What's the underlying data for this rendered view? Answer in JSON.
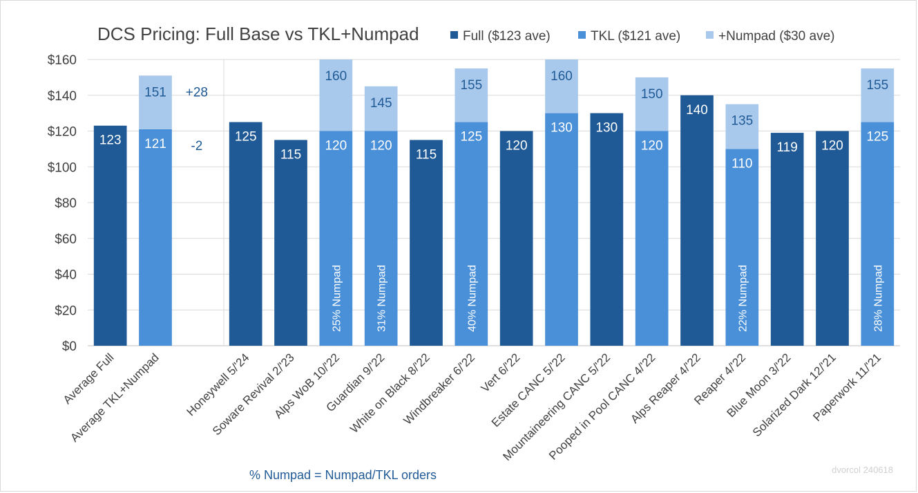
{
  "chart_data": {
    "type": "bar",
    "stacked": true,
    "title": "DCS Pricing: Full Base vs TKL+Numpad",
    "ylim": [
      0,
      160
    ],
    "yticks": [
      0,
      20,
      40,
      60,
      80,
      100,
      120,
      140,
      160
    ],
    "ytick_format": "$",
    "grid": true,
    "legend_position": "top",
    "legend": [
      {
        "key": "full",
        "label": "Full ($123 ave)",
        "color": "#1f5a96"
      },
      {
        "key": "tkl",
        "label": "TKL ($121 ave)",
        "color": "#4a90d9"
      },
      {
        "key": "numpad",
        "label": "+Numpad ($30 ave)",
        "color": "#a9c9ec"
      }
    ],
    "categories": [
      {
        "label": "Average Full",
        "type": "full",
        "base": 123,
        "total": null,
        "pct": null
      },
      {
        "label": "Average TKL+Numpad",
        "type": "tkl",
        "base": 121,
        "total": 151,
        "pct": null,
        "diff_total": "+28",
        "diff_base": "-2"
      },
      {
        "label": "",
        "type": "gap",
        "base": null,
        "total": null,
        "pct": null
      },
      {
        "label": "Honeywell 5/'24",
        "type": "full",
        "base": 125,
        "total": null,
        "pct": null
      },
      {
        "label": "Soware Revival 2/'23",
        "type": "full",
        "base": 115,
        "total": null,
        "pct": null
      },
      {
        "label": "Alps WoB 10/'22",
        "type": "tkl",
        "base": 120,
        "total": 160,
        "pct": "25% Numpad"
      },
      {
        "label": "Guardian 9/'22",
        "type": "tkl",
        "base": 120,
        "total": 145,
        "pct": "31% Numpad"
      },
      {
        "label": "White on Black 8/'22",
        "type": "full",
        "base": 115,
        "total": null,
        "pct": null
      },
      {
        "label": "Windbreaker 6/'22",
        "type": "tkl",
        "base": 125,
        "total": 155,
        "pct": "40% Numpad"
      },
      {
        "label": "Vert 6/'22",
        "type": "full",
        "base": 120,
        "total": null,
        "pct": null
      },
      {
        "label": "Estate CANC 5/'22",
        "type": "tkl",
        "base": 130,
        "total": 160,
        "pct": null
      },
      {
        "label": "Mountaineering CANC 5/'22",
        "type": "full",
        "base": 130,
        "total": null,
        "pct": null
      },
      {
        "label": "Pooped in Pool CANC 4/'22",
        "type": "tkl",
        "base": 120,
        "total": 150,
        "pct": null
      },
      {
        "label": "Alps Reaper 4/'22",
        "type": "full",
        "base": 140,
        "total": null,
        "pct": null
      },
      {
        "label": "Reaper 4/'22",
        "type": "tkl",
        "base": 110,
        "total": 135,
        "pct": "22% Numpad"
      },
      {
        "label": "Blue Moon 3/'22",
        "type": "full",
        "base": 119,
        "total": null,
        "pct": null
      },
      {
        "label": "Solarized Dark 12/'21",
        "type": "full",
        "base": 120,
        "total": null,
        "pct": null
      },
      {
        "label": "Paperwork 11/'21",
        "type": "tkl",
        "base": 125,
        "total": 155,
        "pct": "28% Numpad"
      }
    ],
    "footnote": "% Numpad = Numpad/TKL orders",
    "watermark": "dvorcol 240618"
  }
}
